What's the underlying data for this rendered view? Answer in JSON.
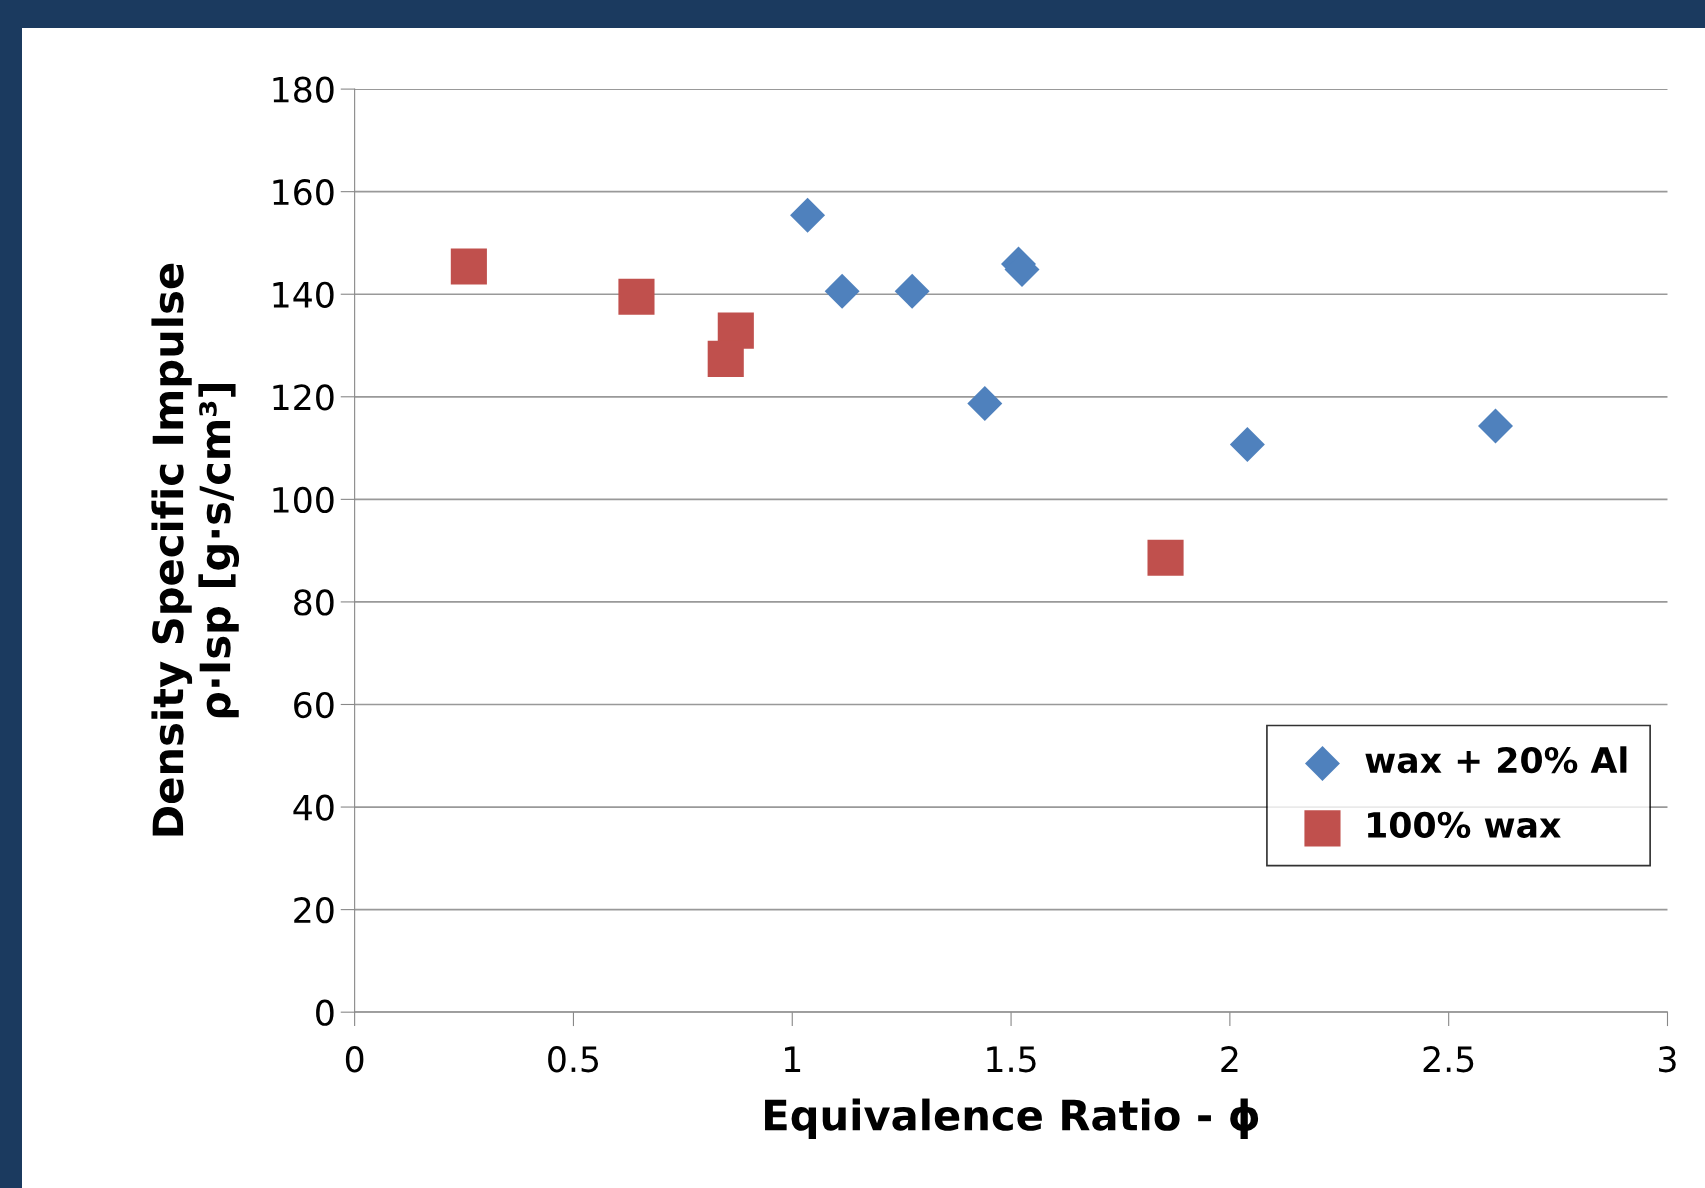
{
  "chart_data": {
    "type": "scatter",
    "xlabel": "Equivalence Ratio - ϕ",
    "ylabel": "Density Specific Impulse\nρ·Isp [g·s/cm³]",
    "series": [
      {
        "name": "wax + 20% Al",
        "color": "#4f81bd",
        "marker": "diamond",
        "x": [
          1.035,
          1.114,
          1.274,
          1.517,
          1.525,
          1.44,
          2.04,
          2.607
        ],
        "values": [
          155.4,
          140.6,
          140.6,
          145.9,
          144.8,
          118.7,
          110.7,
          114.3
        ]
      },
      {
        "name": "100% wax",
        "color": "#c0504d",
        "marker": "square",
        "x": [
          0.261,
          0.644,
          0.871,
          0.848,
          1.853
        ],
        "values": [
          145.4,
          139.5,
          132.9,
          127.4,
          88.6
        ]
      }
    ],
    "xlim": [
      0,
      3
    ],
    "xticks": [
      0,
      0.5,
      1,
      1.5,
      2,
      2.5,
      3
    ],
    "ylim": [
      0,
      180
    ],
    "yticks": [
      0,
      20,
      40,
      60,
      80,
      100,
      120,
      140,
      160,
      180
    ],
    "grid": "y",
    "legend": "bottom right"
  }
}
